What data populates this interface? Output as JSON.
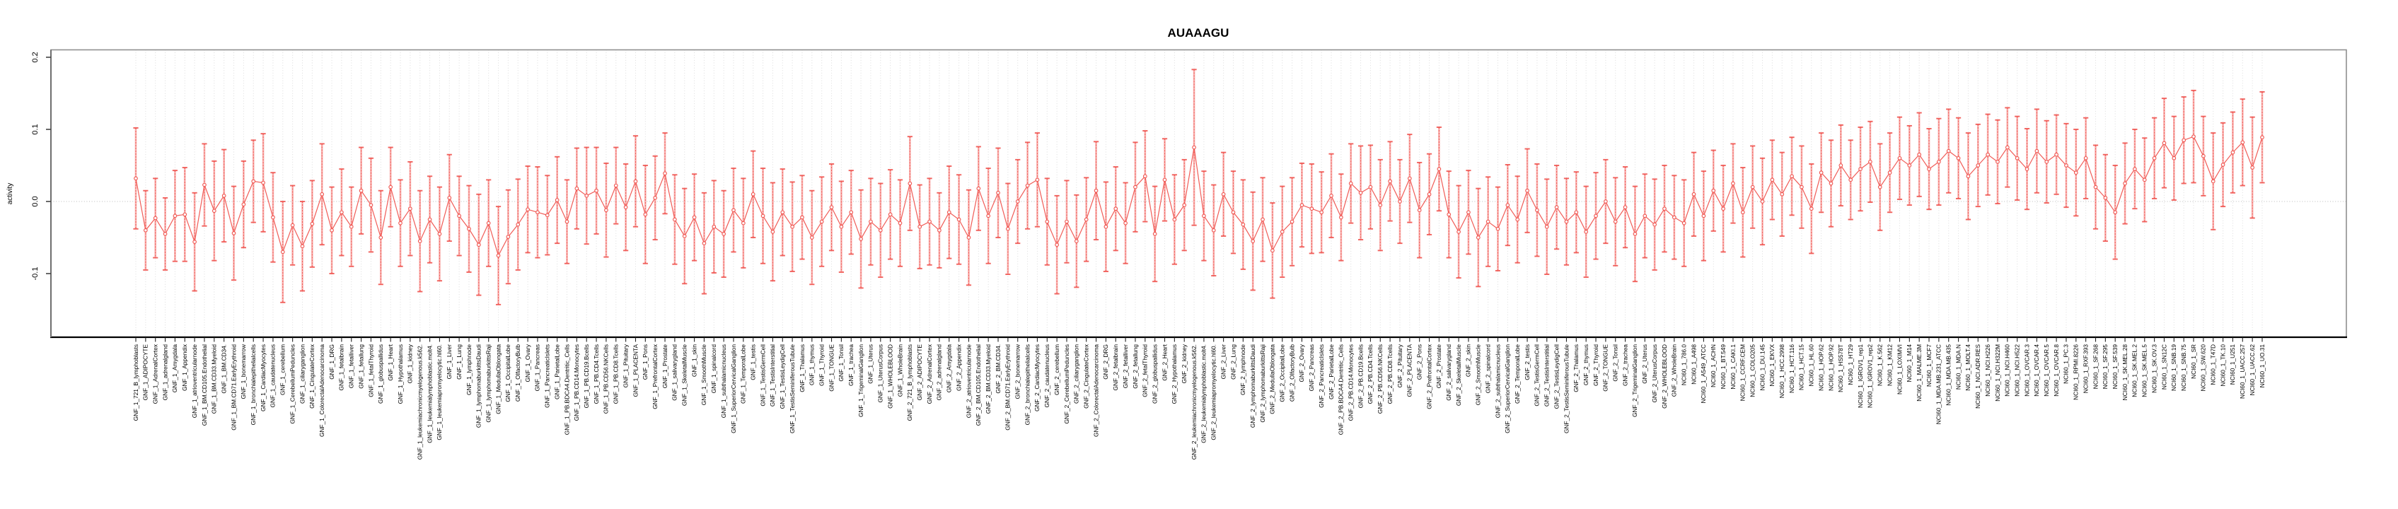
{
  "chart_data": {
    "type": "line",
    "title": "AUAAAGU",
    "xlabel": "",
    "ylabel": "activity",
    "ylim": [
      -0.188,
      0.21
    ],
    "yticks": [
      -0.1,
      0.0,
      0.1,
      0.2
    ],
    "ytick_labels": [
      "-0.1",
      "0.0",
      "0.1",
      "0.2"
    ],
    "legend": "none",
    "grid": "dotted vertical line per category; dotted horizontal line at y=0",
    "marker": "open-circle",
    "error_bars": true,
    "colors": {
      "series": "#f0534e",
      "error_light": "#f8b0ae",
      "grid": "#dcdcdc",
      "zero_line": "#c8c8c8",
      "box": "#8f8f8f",
      "axis": "#000000"
    },
    "categories": [
      "GNF_1_721_B_lymphoblasts",
      "GNF_1_ADIPOCYTE",
      "GNF_1_AdrenalCortex",
      "GNF_1_adrenalgland",
      "GNF_1_Amygdala",
      "GNF_1_Appendix",
      "GNF_1_atrioventricularnode",
      "GNF_1_BM.CD105.Endothelial",
      "GNF_1_BM.CD33.Myeloid",
      "GNF_1_BM.CD34.",
      "GNF_1_BM.CD71.EarlyErythroid",
      "GNF_1_bonemarrow",
      "GNF_1_bronchialepithelialcells",
      "GNF_1_CardiacMyocytes",
      "GNF_1_caudatenucleus",
      "GNF_1_cerebellum",
      "GNF_1_CerebellumPeduncles",
      "GNF_1_ciliaryganglion",
      "GNF_1_CingulateCortex",
      "GNF_1_ColorectalAdenocarcinoma",
      "GNF_1_DRG",
      "GNF_1_fetalbrain",
      "GNF_1_fetalliver",
      "GNF_1_fetallung",
      "GNF_1_fetalThyroid",
      "GNF_1_globuspallidus",
      "GNF_1_Heart",
      "GNF_1_Hypothalamus",
      "GNF_1_kidney",
      "GNF_1_leukemiachronicmyelogenous.k562.",
      "GNF_1_leukemialymphoblastic.molt4.",
      "GNF_1_leukemiapromyelocytic.hl60.",
      "GNF_1_Liver",
      "GNF_1_Lung",
      "GNF_1_lymphnode",
      "GNF_1_lymphomaburkittsDaudi",
      "GNF_1_lymphomaburkittsRaji",
      "GNF_1_MedullaOblongata",
      "GNF_1_OccipitalLobe",
      "GNF_1_OlfactoryBulb",
      "GNF_1_Ovary",
      "GNF_1_Pancreas",
      "GNF_1_PancreaticIslets",
      "GNF_1_ParietalLobe",
      "GNF_1_PB.BDCA4.Dentritic_Cells",
      "GNF_1_PB.CD14.Monocytes",
      "GNF_1_PB.CD19.Bcells",
      "GNF_1_PB.CD4.Tcells",
      "GNF_1_PB.CD56.NKCells",
      "GNF_1_PB.CD8.Tcells",
      "GNF_1_Pituitary",
      "GNF_1_PLACENTA",
      "GNF_1_Pons",
      "GNF_1_PrefrontalCortex",
      "GNF_1_Prostate",
      "GNF_1_salivarygland",
      "GNF_1_SkeletalMuscle",
      "GNF_1_skin",
      "GNF_1_SmoothMuscle",
      "GNF_1_spinalcord",
      "GNF_1_subthalamicnucleus",
      "GNF_1_SuperiorCervicalGanglion",
      "GNF_1_TemporalLobe",
      "GNF_1_testis",
      "GNF_1_TestisGermCell",
      "GNF_1_TestisInterstitial",
      "GNF_1_TestisLeydigCell",
      "GNF_1_TestisSeminiferousTubule",
      "GNF_1_Thalamus",
      "GNF_1_thymus",
      "GNF_1_Thyroid",
      "GNF_1_TONGUE",
      "GNF_1_Tonsil",
      "GNF_1_trachea",
      "GNF_1_TrigeminalGanglion",
      "GNF_1_Uterus",
      "GNF_1_UterusCorpus",
      "GNF_1_WHOLEBLOOD",
      "GNF_1_WholeBrain",
      "GNF_2_721_B_lymphoblasts",
      "GNF_2_ADIPOCYTE",
      "GNF_2_AdrenalCortex",
      "GNF_2_adrenalgland",
      "GNF_2_Amygdala",
      "GNF_2_Appendix",
      "GNF_2_atrioventricularnode",
      "GNF_2_BM.CD105.Endothelial",
      "GNF_2_BM.CD33.Myeloid",
      "GNF_2_BM.CD34.",
      "GNF_2_BM.CD71.EarlyErythroid",
      "GNF_2_bonemarrow",
      "GNF_2_bronchialepithelialcells",
      "GNF_2_CardiacMyocytes",
      "GNF_2_caudatenucleus",
      "GNF_2_cerebellum",
      "GNF_2_CerebellumPeduncles",
      "GNF_2_ciliaryganglion",
      "GNF_2_CingulateCortex",
      "GNF_2_ColorectalAdenocarcinoma",
      "GNF_2_DRG",
      "GNF_2_fetalbrain",
      "GNF_2_fetalliver",
      "GNF_2_fetallung",
      "GNF_2_fetalThyroid",
      "GNF_2_globuspallidus",
      "GNF_2_Heart",
      "GNF_2_Hypothalamus",
      "GNF_2_kidney",
      "GNF_2_leukemiachronicmyelogenous.k562.",
      "GNF_2_leukemialymphoblastic.molt4.",
      "GNF_2_leukemiapromyelocytic.hl60.",
      "GNF_2_Liver",
      "GNF_2_Lung",
      "GNF_2_lymphnode",
      "GNF_2_lymphomaburkittsDaudi",
      "GNF_2_lymphomaburkittsRaji",
      "GNF_2_MedullaOblongata",
      "GNF_2_OccipitalLobe",
      "GNF_2_OlfactoryBulb",
      "GNF_2_Ovary",
      "GNF_2_Pancreas",
      "GNF_2_PancreaticIslets",
      "GNF_2_ParietalLobe",
      "GNF_2_PB.BDCA4.Dentritic_Cells",
      "GNF_2_PB.CD14.Monocytes",
      "GNF_2_PB.CD19.Bcells",
      "GNF_2_PB.CD4.Tcells",
      "GNF_2_PB.CD56.NKCells",
      "GNF_2_PB.CD8.Tcells",
      "GNF_2_Pituitary",
      "GNF_2_PLACENTA",
      "GNF_2_Pons",
      "GNF_2_PrefrontalCortex",
      "GNF_2_Prostate",
      "GNF_2_salivarygland",
      "GNF_2_SkeletalMuscle",
      "GNF_2_skin",
      "GNF_2_SmoothMuscle",
      "GNF_2_spinalcord",
      "GNF_2_subthalamicnucleus",
      "GNF_2_SuperiorCervicalGanglion",
      "GNF_2_TemporalLobe",
      "GNF_2_testis",
      "GNF_2_TestisGermCell",
      "GNF_2_TestisInterstitial",
      "GNF_2_TestisLeydigCell",
      "GNF_2_TestisSeminiferousTubule",
      "GNF_2_Thalamus",
      "GNF_2_thymus",
      "GNF_2_Thyroid",
      "GNF_2_TONGUE",
      "GNF_2_Tonsil",
      "GNF_2_trachea",
      "GNF_2_TrigeminalGanglion",
      "GNF_2_Uterus",
      "GNF_2_UterusCorpus",
      "GNF_2_WHOLEBLOOD",
      "GNF_2_WholeBrain",
      "NCI60_1_786.0",
      "NCI60_1_A498",
      "NCI60_1_A549_ATCC",
      "NCI60_1_ACHN",
      "NCI60_1_BT.549",
      "NCI60_1_CAKI.1",
      "NCI60_1_CCRF.CEM",
      "NCI60_1_COLO205",
      "NCI60_1_DU.145",
      "NCI60_1_EKVX",
      "NCI60_1_HCC.2998",
      "NCI60_1_HCT.116",
      "NCI60_1_HCT.15",
      "NCI60_1_HL.60",
      "NCI60_1_HOP.62",
      "NCI60_1_HOP.92",
      "NCI60_1_HS578T",
      "NCI60_1_HT29",
      "NCI60_1_IGROV1_rep1",
      "NCI60_1_IGROV1_rep2",
      "NCI60_1_K.562",
      "NCI60_1_KM12",
      "NCI60_1_LOXIMVI",
      "NCI60_1_M14",
      "NCI60_1_MALME.3M",
      "NCI60_1_MCF7",
      "NCI60_1_MDA.MB.231_ATCC",
      "NCI60_1_MDA.MB.435",
      "NCI60_1_MDA.N",
      "NCI60_1_MOLT.4",
      "NCI60_1_NCI.ADR.RES",
      "NCI60_1_NCI.H226",
      "NCI60_1_NCI.H322M",
      "NCI60_1_NCI.H460",
      "NCI60_1_NCI.H522",
      "NCI60_1_OVCAR.3",
      "NCI60_1_OVCAR.4",
      "NCI60_1_OVCAR.5",
      "NCI60_1_OVCAR.8",
      "NCI60_1_PC.3",
      "NCI60_1_RPMI.8226",
      "NCI60_1_RXF.393",
      "NCI60_1_SF.268",
      "NCI60_1_SF.295",
      "NCI60_1_SF.539",
      "NCI60_1_SK.MEL.28",
      "NCI60_1_SK.MEL.2",
      "NCI60_1_SK.MEL.5",
      "NCI60_1_SK.OV.3",
      "NCI60_1_SN12C",
      "NCI60_1_SNB.19",
      "NCI60_1_SNB.75",
      "NCI60_1_SR",
      "NCI60_1_SW.620",
      "NCI60_1_T47D",
      "NCI60_1_TK.10",
      "NCI60_1_U251",
      "NCI60_1_UACC.257",
      "NCI60_1_UACC.62",
      "NCI60_1_UO.31"
    ],
    "series": [
      {
        "name": "activity",
        "means": [
          0.032,
          -0.04,
          -0.023,
          -0.045,
          -0.02,
          -0.018,
          -0.056,
          0.023,
          -0.013,
          0.008,
          -0.044,
          -0.004,
          0.028,
          0.026,
          -0.022,
          -0.07,
          -0.033,
          -0.062,
          -0.031,
          0.01,
          -0.04,
          -0.015,
          -0.035,
          0.015,
          -0.005,
          -0.05,
          0.02,
          -0.03,
          -0.01,
          -0.055,
          -0.025,
          -0.045,
          0.005,
          -0.02,
          -0.038,
          -0.06,
          -0.03,
          -0.075,
          -0.049,
          -0.032,
          -0.011,
          -0.015,
          -0.019,
          0.002,
          -0.028,
          0.018,
          0.008,
          0.015,
          -0.012,
          0.022,
          -0.008,
          0.028,
          -0.018,
          0.005,
          0.039,
          -0.025,
          -0.048,
          -0.022,
          -0.058,
          -0.035,
          -0.045,
          -0.012,
          -0.03,
          0.01,
          -0.02,
          -0.042,
          -0.015,
          -0.035,
          -0.022,
          -0.05,
          -0.028,
          -0.008,
          -0.035,
          -0.015,
          -0.052,
          -0.028,
          -0.04,
          -0.018,
          -0.03,
          0.025,
          -0.035,
          -0.028,
          -0.04,
          -0.015,
          -0.025,
          -0.05,
          0.018,
          -0.02,
          0.012,
          -0.038,
          0.0,
          0.022,
          0.03,
          -0.028,
          -0.06,
          -0.028,
          -0.055,
          -0.025,
          0.015,
          -0.035,
          -0.01,
          -0.03,
          0.02,
          0.035,
          -0.045,
          0.03,
          -0.025,
          -0.005,
          0.075,
          -0.02,
          -0.04,
          0.01,
          -0.015,
          -0.032,
          -0.055,
          -0.025,
          -0.068,
          -0.042,
          -0.028,
          -0.005,
          -0.01,
          -0.015,
          0.008,
          -0.022,
          0.025,
          0.012,
          0.02,
          -0.005,
          0.028,
          0.0,
          0.032,
          -0.012,
          0.01,
          0.045,
          -0.018,
          -0.042,
          -0.015,
          -0.05,
          -0.028,
          -0.038,
          -0.005,
          -0.025,
          0.015,
          -0.012,
          -0.035,
          -0.008,
          -0.028,
          -0.015,
          -0.042,
          -0.02,
          0.0,
          -0.028,
          -0.008,
          -0.045,
          -0.02,
          -0.032,
          -0.01,
          -0.022,
          -0.03,
          0.01,
          -0.02,
          0.015,
          -0.01,
          0.025,
          -0.015,
          0.02,
          0.0,
          0.03,
          0.01,
          0.035,
          0.02,
          -0.01,
          0.04,
          0.025,
          0.05,
          0.03,
          0.045,
          0.055,
          0.02,
          0.04,
          0.06,
          0.05,
          0.065,
          0.045,
          0.055,
          0.07,
          0.06,
          0.035,
          0.05,
          0.065,
          0.055,
          0.075,
          0.06,
          0.045,
          0.07,
          0.055,
          0.065,
          0.05,
          0.04,
          0.06,
          0.02,
          0.005,
          -0.015,
          0.025,
          0.045,
          0.03,
          0.06,
          0.081,
          0.06,
          0.085,
          0.09,
          0.063,
          0.028,
          0.051,
          0.068,
          0.082,
          0.047,
          0.089
        ],
        "errors": [
          0.07,
          0.055,
          0.055,
          0.05,
          0.063,
          0.065,
          0.068,
          0.057,
          0.069,
          0.064,
          0.065,
          0.06,
          0.057,
          0.068,
          0.062,
          0.07,
          0.055,
          0.062,
          0.06,
          0.07,
          0.06,
          0.06,
          0.055,
          0.06,
          0.065,
          0.065,
          0.055,
          0.06,
          0.065,
          0.07,
          0.06,
          0.065,
          0.06,
          0.055,
          0.06,
          0.07,
          0.06,
          0.068,
          0.065,
          0.063,
          0.06,
          0.063,
          0.055,
          0.06,
          0.058,
          0.056,
          0.067,
          0.06,
          0.065,
          0.053,
          0.06,
          0.063,
          0.068,
          0.058,
          0.056,
          0.062,
          0.066,
          0.06,
          0.07,
          0.064,
          0.06,
          0.058,
          0.062,
          0.06,
          0.066,
          0.068,
          0.06,
          0.062,
          0.058,
          0.065,
          0.062,
          0.06,
          0.063,
          0.058,
          0.068,
          0.06,
          0.065,
          0.062,
          0.06,
          0.065,
          0.058,
          0.06,
          0.052,
          0.064,
          0.062,
          0.066,
          0.058,
          0.066,
          0.062,
          0.063,
          0.058,
          0.06,
          0.065,
          0.06,
          0.068,
          0.057,
          0.064,
          0.058,
          0.068,
          0.062,
          0.058,
          0.056,
          0.062,
          0.063,
          0.066,
          0.057,
          0.062,
          0.063,
          0.108,
          0.062,
          0.063,
          0.058,
          0.057,
          0.062,
          0.068,
          0.058,
          0.066,
          0.063,
          0.061,
          0.058,
          0.062,
          0.056,
          0.058,
          0.06,
          0.055,
          0.065,
          0.058,
          0.063,
          0.055,
          0.058,
          0.061,
          0.066,
          0.056,
          0.058,
          0.06,
          0.064,
          0.058,
          0.068,
          0.062,
          0.058,
          0.056,
          0.06,
          0.058,
          0.064,
          0.066,
          0.058,
          0.06,
          0.056,
          0.063,
          0.06,
          0.058,
          0.061,
          0.056,
          0.066,
          0.058,
          0.063,
          0.06,
          0.058,
          0.06,
          0.058,
          0.062,
          0.056,
          0.06,
          0.055,
          0.062,
          0.057,
          0.06,
          0.055,
          0.058,
          0.054,
          0.057,
          0.062,
          0.055,
          0.06,
          0.056,
          0.055,
          0.058,
          0.056,
          0.06,
          0.055,
          0.057,
          0.055,
          0.058,
          0.056,
          0.06,
          0.058,
          0.056,
          0.06,
          0.057,
          0.056,
          0.058,
          0.055,
          0.058,
          0.056,
          0.058,
          0.057,
          0.055,
          0.058,
          0.06,
          0.056,
          0.058,
          0.06,
          0.065,
          0.056,
          0.055,
          0.058,
          0.056,
          0.062,
          0.058,
          0.06,
          0.064,
          0.055,
          0.067,
          0.058,
          0.056,
          0.06,
          0.07,
          0.063
        ]
      }
    ]
  }
}
